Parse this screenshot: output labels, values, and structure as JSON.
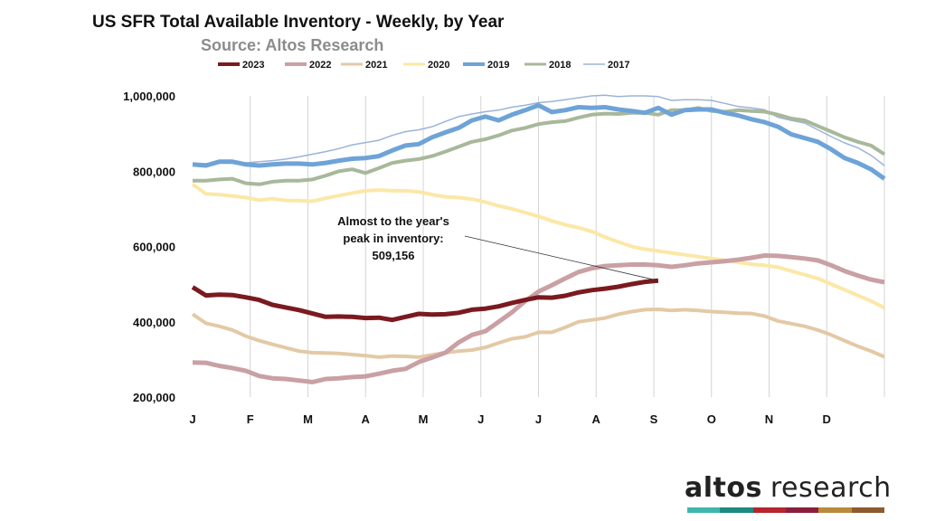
{
  "chart_data": {
    "type": "line",
    "title": "US SFR Total Available Inventory - Weekly, by Year",
    "subtitle": "Source: Altos Research",
    "xlabel": "",
    "ylabel": "",
    "ylim": [
      200000,
      1000000
    ],
    "yticks": [
      200000,
      400000,
      600000,
      800000,
      1000000
    ],
    "ytick_labels": [
      "200,000",
      "400,000",
      "600,000",
      "800,000",
      "1,000,000"
    ],
    "months": [
      "J",
      "F",
      "M",
      "A",
      "M",
      "J",
      "J",
      "A",
      "S",
      "O",
      "N",
      "D"
    ],
    "weeks": 53,
    "grid": "vertical",
    "legend": "top",
    "annotation": {
      "lines": [
        "Almost to the year's",
        "peak in inventory:",
        "509,156"
      ],
      "series": "2023",
      "week": 35,
      "value": 509156
    },
    "series": [
      {
        "name": "2023",
        "color": "#7a1a1f",
        "width": 5,
        "values": [
          492000,
          470000,
          472000,
          471000,
          465000,
          458000,
          445000,
          438000,
          431000,
          422000,
          413000,
          414000,
          413000,
          410000,
          411000,
          405000,
          413000,
          421000,
          419000,
          420000,
          424000,
          432000,
          435000,
          441000,
          450000,
          458000,
          465000,
          464000,
          469000,
          478000,
          484000,
          488000,
          493000,
          500000,
          506000,
          509156
        ]
      },
      {
        "name": "2022",
        "color": "#c9a0a4",
        "width": 5,
        "values": [
          292000,
          291000,
          283000,
          277000,
          270000,
          256000,
          250000,
          248000,
          244000,
          240000,
          248000,
          250000,
          253000,
          255000,
          262000,
          270000,
          275000,
          293000,
          305000,
          318000,
          345000,
          365000,
          375000,
          400000,
          425000,
          455000,
          480000,
          497000,
          515000,
          532000,
          542000,
          548000,
          550000,
          552000,
          552000,
          550000,
          546000,
          550000,
          555000,
          558000,
          561000,
          565000,
          570000,
          576000,
          575000,
          572000,
          568000,
          563000,
          550000,
          535000,
          523000,
          512000,
          505000
        ]
      },
      {
        "name": "2021",
        "color": "#e3c9a5",
        "width": 4,
        "values": [
          420000,
          396000,
          388000,
          378000,
          362000,
          350000,
          340000,
          331000,
          322000,
          318000,
          317000,
          316000,
          313000,
          310000,
          306000,
          309000,
          308000,
          306000,
          312000,
          318000,
          322000,
          325000,
          332000,
          344000,
          355000,
          360000,
          372000,
          372000,
          385000,
          400000,
          405000,
          410000,
          420000,
          427000,
          432000,
          433000,
          430000,
          432000,
          430000,
          427000,
          425000,
          423000,
          422000,
          415000,
          402000,
          395000,
          388000,
          378000,
          365000,
          350000,
          335000,
          322000,
          307000
        ]
      },
      {
        "name": "2020",
        "color": "#fbe8a6",
        "width": 4,
        "values": [
          765000,
          740000,
          738000,
          734000,
          730000,
          723000,
          727000,
          722000,
          722000,
          720000,
          728000,
          735000,
          742000,
          748000,
          750000,
          748000,
          748000,
          745000,
          738000,
          732000,
          730000,
          726000,
          718000,
          708000,
          700000,
          690000,
          680000,
          668000,
          658000,
          650000,
          640000,
          625000,
          612000,
          600000,
          593000,
          588000,
          583000,
          578000,
          573000,
          568000,
          563000,
          558000,
          553000,
          550000,
          545000,
          535000,
          525000,
          515000,
          500000,
          485000,
          470000,
          455000,
          437000
        ]
      },
      {
        "name": "2019",
        "color": "#6ea3d8",
        "width": 5,
        "values": [
          818000,
          815000,
          825000,
          825000,
          818000,
          815000,
          818000,
          820000,
          820000,
          818000,
          822000,
          828000,
          833000,
          835000,
          840000,
          855000,
          868000,
          872000,
          890000,
          903000,
          915000,
          935000,
          945000,
          935000,
          950000,
          962000,
          975000,
          957000,
          962000,
          970000,
          968000,
          970000,
          964000,
          960000,
          955000,
          968000,
          950000,
          962000,
          964000,
          964000,
          955000,
          948000,
          938000,
          930000,
          918000,
          898000,
          888000,
          878000,
          858000,
          835000,
          822000,
          805000,
          780000
        ]
      },
      {
        "name": "2018",
        "color": "#a8b89a",
        "width": 4,
        "values": [
          775000,
          775000,
          778000,
          780000,
          768000,
          765000,
          772000,
          775000,
          775000,
          778000,
          788000,
          800000,
          805000,
          795000,
          808000,
          822000,
          828000,
          832000,
          840000,
          852000,
          865000,
          878000,
          885000,
          895000,
          908000,
          915000,
          925000,
          930000,
          933000,
          942000,
          950000,
          953000,
          952000,
          955000,
          955000,
          950000,
          962000,
          962000,
          968000,
          960000,
          958000,
          962000,
          960000,
          958000,
          950000,
          940000,
          935000,
          920000,
          905000,
          890000,
          878000,
          868000,
          845000
        ]
      },
      {
        "name": "2017",
        "color": "#9bb3d9",
        "width": 1.5,
        "values": [
          820000,
          820000,
          822000,
          825000,
          822000,
          825000,
          828000,
          832000,
          838000,
          845000,
          852000,
          860000,
          870000,
          876000,
          882000,
          895000,
          905000,
          910000,
          918000,
          932000,
          945000,
          952000,
          958000,
          962000,
          970000,
          975000,
          982000,
          985000,
          990000,
          995000,
          1000000,
          1002000,
          998000,
          1000000,
          1000000,
          998000,
          988000,
          990000,
          990000,
          988000,
          980000,
          972000,
          968000,
          963000,
          943000,
          935000,
          928000,
          910000,
          892000,
          875000,
          862000,
          842000,
          815000
        ]
      }
    ]
  },
  "brand": {
    "word1": "altos",
    "word2": "research",
    "bar_colors": [
      "#3fb6ad",
      "#1c8a80",
      "#b8242b",
      "#8a1f3c",
      "#b98a3b",
      "#8c5b2f"
    ]
  }
}
